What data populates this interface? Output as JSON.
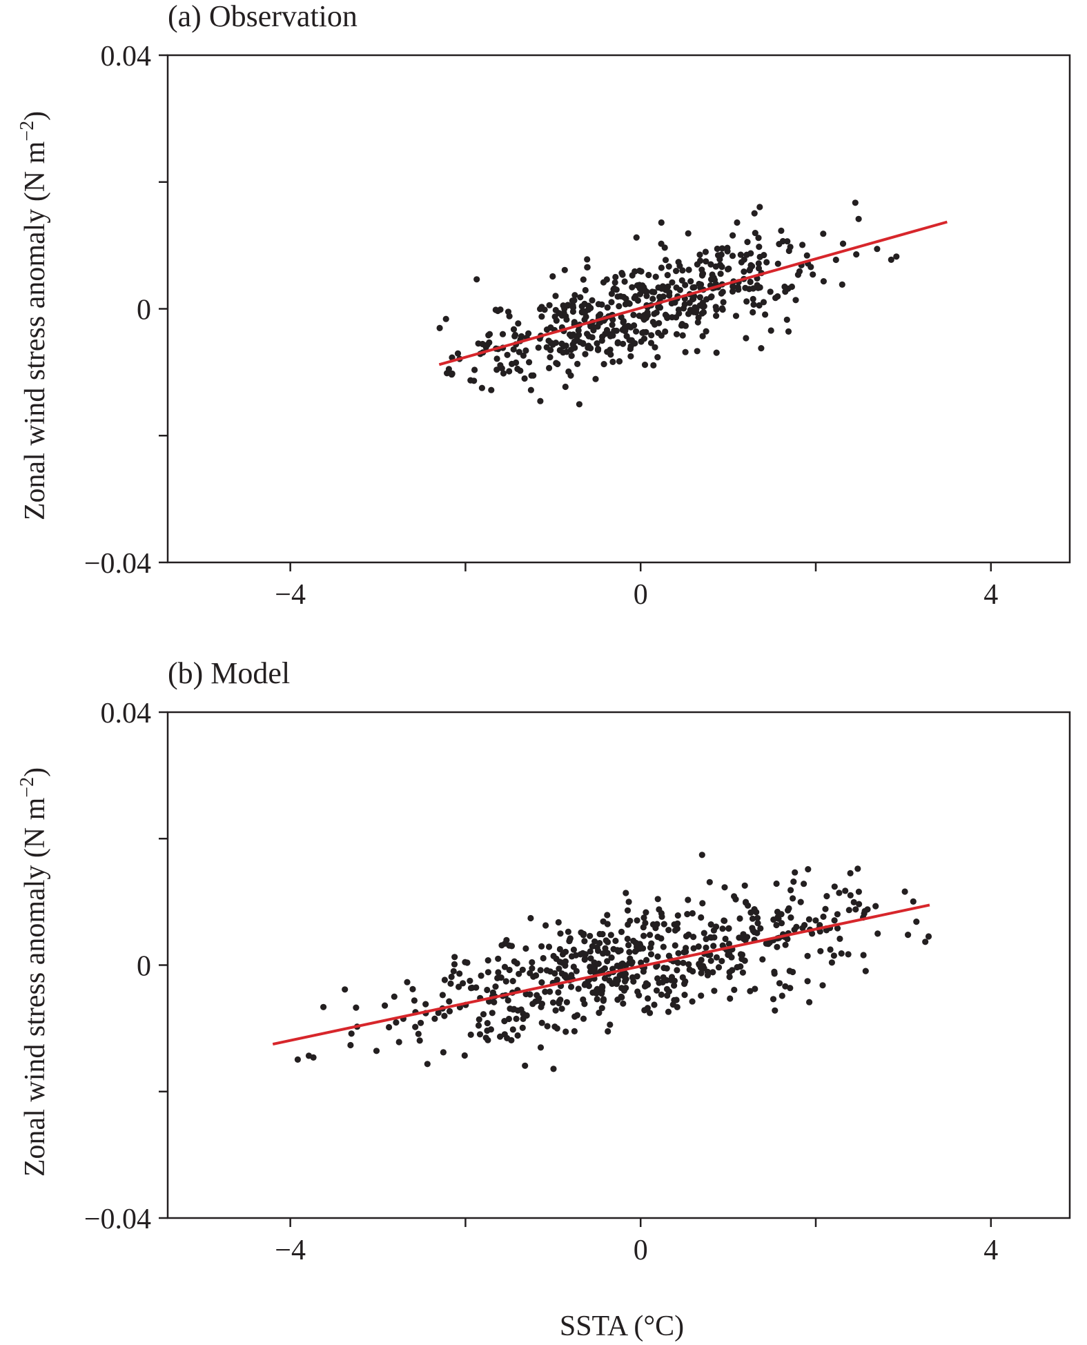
{
  "chart_data": [
    {
      "type": "scatter",
      "title": "(a) Observation",
      "xlabel": "",
      "ylabel_main": "Zonal wind stress anomaly (N m",
      "ylabel_sup": "−2",
      "ylabel_close": ")",
      "xlim": [
        -5.4,
        4.9
      ],
      "ylim": [
        -0.04,
        0.04
      ],
      "xticks": [
        -4,
        -2,
        0,
        2,
        4
      ],
      "xticklabels": [
        "−4",
        "",
        "0",
        "",
        "4"
      ],
      "yticks": [
        -0.04,
        -0.02,
        0,
        0.02,
        0.04
      ],
      "yticklabels": [
        "−0.04",
        "",
        "0",
        "",
        "0.04"
      ],
      "regression": {
        "x": [
          -2.3,
          3.5
        ],
        "y": [
          -0.0088,
          0.0137
        ]
      },
      "point_params": {
        "n": 520,
        "seed": 11,
        "x_mean": 0.0,
        "x_sd": 1.05,
        "x_min": -2.3,
        "x_max": 3.5,
        "slope": 0.00388,
        "intercept": 0.0,
        "noise_sd": 0.0041
      }
    },
    {
      "type": "scatter",
      "title": "(b) Model",
      "xlabel": "SSTA (°C)",
      "ylabel_main": "Zonal wind stress anomaly (N m",
      "ylabel_sup": "−2",
      "ylabel_close": ")",
      "xlim": [
        -5.4,
        4.9
      ],
      "ylim": [
        -0.04,
        0.04
      ],
      "xticks": [
        -4,
        -2,
        0,
        2,
        4
      ],
      "xticklabels": [
        "−4",
        "",
        "0",
        "",
        "4"
      ],
      "yticks": [
        -0.04,
        -0.02,
        0,
        0.02,
        0.04
      ],
      "yticklabels": [
        "−0.04",
        "",
        "0",
        "",
        "0.04"
      ],
      "regression": {
        "x": [
          -4.2,
          3.3
        ],
        "y": [
          -0.0125,
          0.0095
        ]
      },
      "point_params": {
        "n": 600,
        "seed": 29,
        "x_mean": 0.0,
        "x_sd": 1.45,
        "x_min": -4.2,
        "x_max": 3.3,
        "slope": 0.00293,
        "intercept": 0.0,
        "noise_sd": 0.0045
      }
    }
  ],
  "colors": {
    "points": "#231f20",
    "regression": "#d7262b",
    "axes": "#231f20"
  }
}
